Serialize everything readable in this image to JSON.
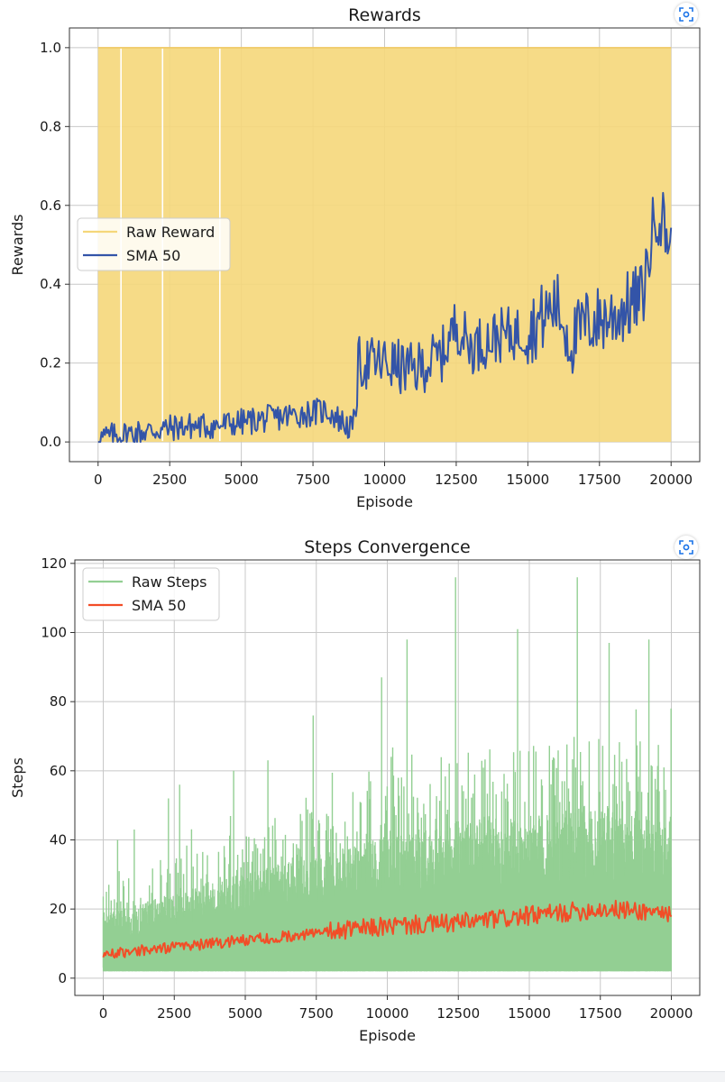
{
  "ui": {
    "expand_icon": "expand-image-icon",
    "accent": "#1a73e8"
  },
  "chart_data": [
    {
      "type": "area",
      "title": "Rewards",
      "xlabel": "Episode",
      "ylabel": "Rewards",
      "xlim": [
        -1000,
        21000
      ],
      "ylim": [
        -0.05,
        1.05
      ],
      "xticks": [
        0,
        2500,
        5000,
        7500,
        10000,
        12500,
        15000,
        17500,
        20000
      ],
      "xtick_labels": [
        "0",
        "2500",
        "5000",
        "7500",
        "10000",
        "12500",
        "15000",
        "17500",
        "20000"
      ],
      "yticks": [
        0.0,
        0.2,
        0.4,
        0.6,
        0.8,
        1.0
      ],
      "ytick_labels": [
        "0.0",
        "0.2",
        "0.4",
        "0.6",
        "0.8",
        "1.0"
      ],
      "grid": true,
      "legend_position": "center-left",
      "series": [
        {
          "name": "Raw Reward",
          "kind": "binary-fill",
          "color": "#f5d77a",
          "x_range": [
            0,
            20000
          ],
          "values": [
            0,
            1
          ],
          "gaps_at": [
            800,
            2250,
            4250
          ]
        },
        {
          "name": "SMA 50",
          "kind": "line",
          "color": "#3354a8",
          "x": [
            0,
            1000,
            2000,
            3000,
            4000,
            5000,
            6000,
            7000,
            8000,
            8900,
            9100,
            10000,
            11000,
            12000,
            12500,
            13000,
            14000,
            15000,
            16000,
            16500,
            17000,
            18000,
            19000,
            19500,
            20000
          ],
          "values": [
            0.01,
            0.02,
            0.03,
            0.04,
            0.04,
            0.05,
            0.06,
            0.07,
            0.08,
            0.03,
            0.2,
            0.2,
            0.18,
            0.22,
            0.3,
            0.24,
            0.27,
            0.28,
            0.35,
            0.25,
            0.3,
            0.32,
            0.37,
            0.6,
            0.5
          ]
        }
      ]
    },
    {
      "type": "line",
      "title": "Steps Convergence",
      "xlabel": "Episode",
      "ylabel": "Steps",
      "xlim": [
        -1000,
        21000
      ],
      "ylim": [
        -5,
        121
      ],
      "xticks": [
        0,
        2500,
        5000,
        7500,
        10000,
        12500,
        15000,
        17500,
        20000
      ],
      "xtick_labels": [
        "0",
        "2500",
        "5000",
        "7500",
        "10000",
        "12500",
        "15000",
        "17500",
        "20000"
      ],
      "yticks": [
        0,
        20,
        40,
        60,
        80,
        100,
        120
      ],
      "ytick_labels": [
        "0",
        "20",
        "40",
        "60",
        "80",
        "100",
        "120"
      ],
      "grid": true,
      "legend_position": "top-left",
      "series": [
        {
          "name": "Raw Steps",
          "kind": "noisy-band",
          "color": "#93cf93",
          "x": [
            0,
            2500,
            5000,
            7500,
            10000,
            12500,
            15000,
            17500,
            20000
          ],
          "typical_max": [
            22,
            30,
            38,
            45,
            52,
            58,
            60,
            62,
            60
          ],
          "min": 2,
          "peaks": [
            [
              500,
              40
            ],
            [
              1100,
              43
            ],
            [
              2300,
              52
            ],
            [
              2700,
              56
            ],
            [
              4600,
              60
            ],
            [
              5800,
              63
            ],
            [
              7400,
              76
            ],
            [
              9800,
              87
            ],
            [
              10700,
              98
            ],
            [
              12400,
              116
            ],
            [
              14600,
              101
            ],
            [
              16700,
              116
            ],
            [
              17800,
              97
            ],
            [
              19200,
              98
            ],
            [
              20000,
              78
            ]
          ]
        },
        {
          "name": "SMA 50",
          "kind": "line",
          "color": "#f24d27",
          "x": [
            0,
            2500,
            5000,
            7500,
            10000,
            12500,
            15000,
            17500,
            20000
          ],
          "values": [
            7,
            9,
            11,
            13,
            15,
            16,
            18,
            20,
            19
          ]
        }
      ]
    }
  ]
}
